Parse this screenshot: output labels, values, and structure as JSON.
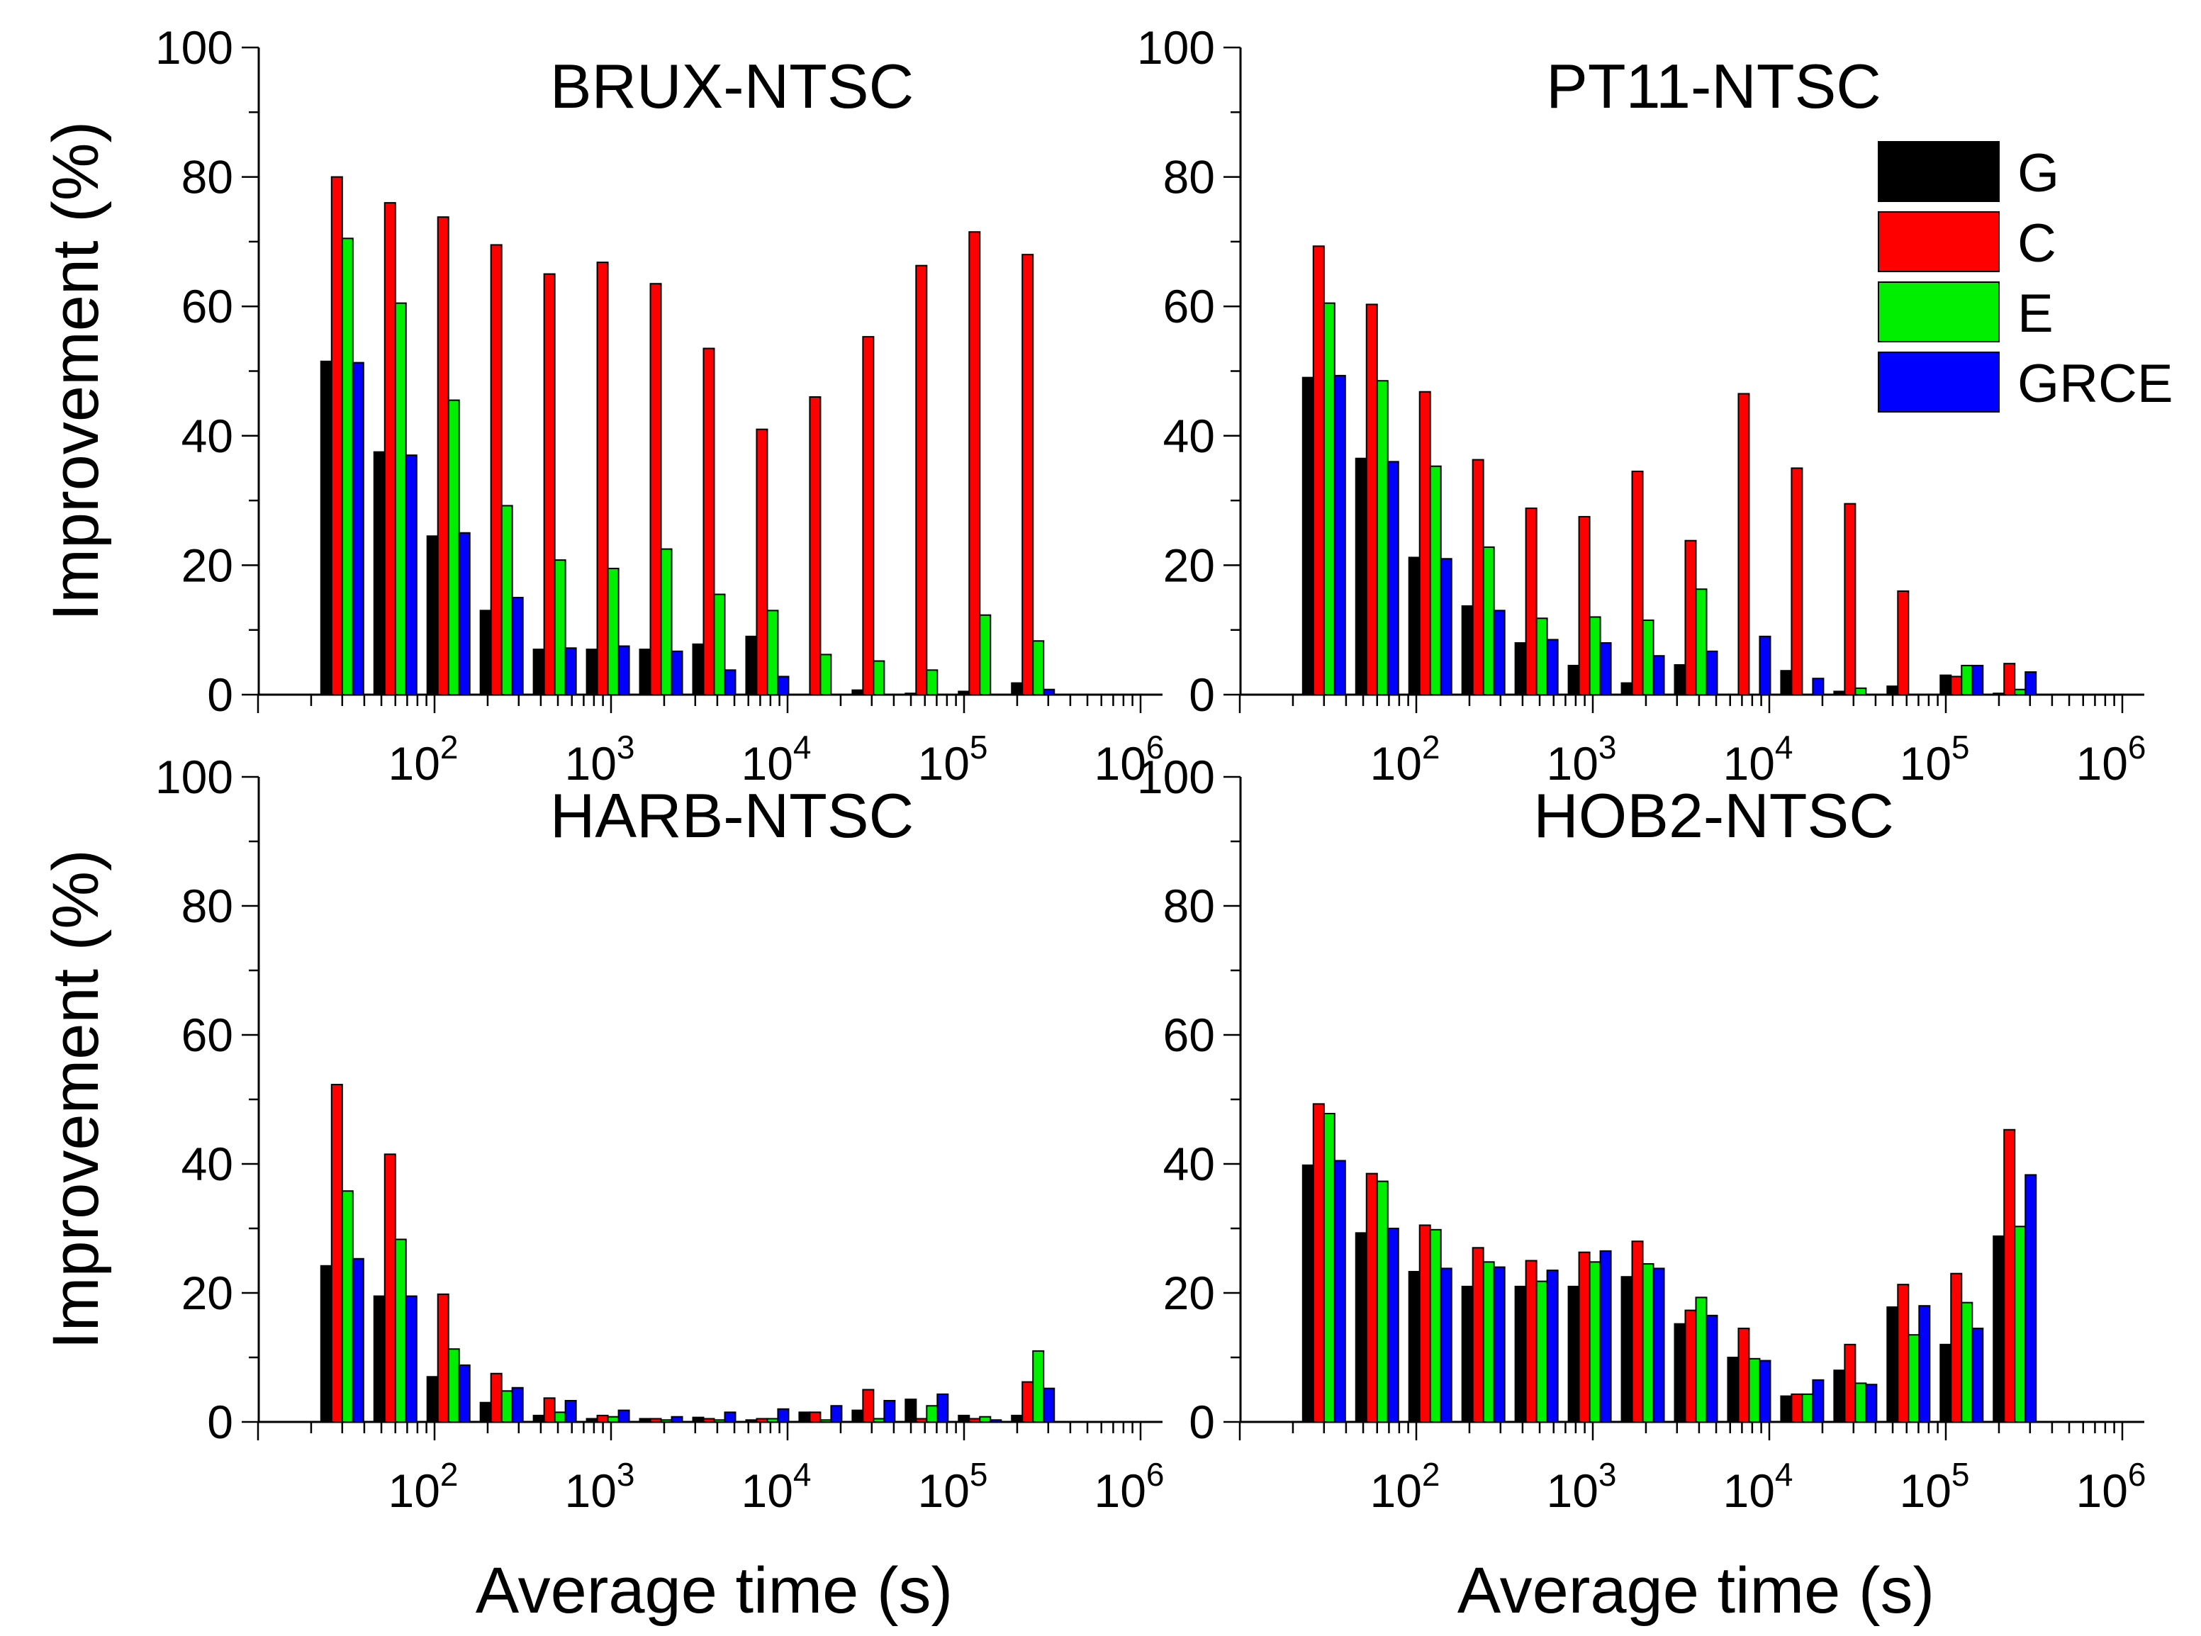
{
  "colors": {
    "G": "#000000",
    "C": "#ff0000",
    "E": "#00ee00",
    "GRCE": "#0000ff"
  },
  "axes": {
    "xlabel": "Average time (s)",
    "ylabel": "Improvement (%)",
    "y_ticks": [
      "0",
      "20",
      "40",
      "60",
      "80",
      "100"
    ],
    "x_tick_bases": [
      "10",
      "10",
      "10",
      "10",
      "10"
    ],
    "x_tick_exponents": [
      "2",
      "3",
      "4",
      "5",
      "6"
    ]
  },
  "legend": {
    "entries": [
      "G",
      "C",
      "E",
      "GRCE"
    ],
    "location": "top-right of PT11-NTSC panel"
  },
  "chart_data": [
    {
      "type": "bar",
      "title": "BRUX-NTSC",
      "xscale": "log",
      "xlim": [
        10,
        1000000
      ],
      "ylim": [
        0,
        100
      ],
      "x": [
        30,
        60,
        120,
        240,
        480,
        960,
        1920,
        3840,
        7680,
        15360,
        30720,
        61440,
        122880,
        245760
      ],
      "series": [
        {
          "name": "G",
          "values": [
            51.5,
            37.5,
            24.5,
            13,
            7,
            7,
            7,
            7.8,
            9,
            0,
            0.7,
            0.2,
            0.5,
            1.8
          ]
        },
        {
          "name": "C",
          "values": [
            80,
            76,
            73.8,
            69.5,
            65,
            66.8,
            63.5,
            53.5,
            41,
            46,
            55.3,
            66.3,
            71.5,
            68
          ]
        },
        {
          "name": "E",
          "values": [
            70.5,
            60.5,
            45.5,
            29.2,
            20.8,
            19.5,
            22.5,
            15.5,
            13,
            6.2,
            5.2,
            3.8,
            12.3,
            8.3
          ]
        },
        {
          "name": "GRCE",
          "values": [
            51.3,
            37,
            25,
            15,
            7.2,
            7.5,
            6.7,
            3.8,
            2.8,
            0,
            0,
            0,
            0,
            0.8
          ]
        }
      ]
    },
    {
      "type": "bar",
      "title": "PT11-NTSC",
      "xscale": "log",
      "xlim": [
        10,
        1000000
      ],
      "ylim": [
        0,
        100
      ],
      "x": [
        30,
        60,
        120,
        240,
        480,
        960,
        1920,
        3840,
        7680,
        15360,
        30720,
        61440,
        122880,
        245760
      ],
      "series": [
        {
          "name": "G",
          "values": [
            49,
            36.5,
            21.2,
            13.7,
            8,
            4.5,
            1.8,
            4.6,
            0,
            3.7,
            0.5,
            1.3,
            3,
            0.2
          ]
        },
        {
          "name": "C",
          "values": [
            69.3,
            60.3,
            46.8,
            36.3,
            28.8,
            27.5,
            34.5,
            23.8,
            46.5,
            35,
            29.5,
            16,
            2.8,
            4.8
          ]
        },
        {
          "name": "E",
          "values": [
            60.5,
            48.5,
            35.3,
            22.8,
            11.8,
            12,
            11.5,
            16.3,
            0,
            0,
            1,
            0,
            4.5,
            0.8
          ]
        },
        {
          "name": "GRCE",
          "values": [
            49.3,
            36,
            21,
            13,
            8.5,
            8,
            6,
            6.7,
            9,
            2.5,
            0,
            0,
            4.5,
            3.5
          ]
        }
      ]
    },
    {
      "type": "bar",
      "title": "HARB-NTSC",
      "xscale": "log",
      "xlim": [
        10,
        1000000
      ],
      "ylim": [
        0,
        100
      ],
      "x": [
        30,
        60,
        120,
        240,
        480,
        960,
        1920,
        3840,
        7680,
        15360,
        30720,
        61440,
        122880,
        245760
      ],
      "series": [
        {
          "name": "G",
          "values": [
            24.2,
            19.5,
            7,
            3,
            1,
            0.5,
            0.5,
            0.7,
            0.3,
            1.5,
            1.8,
            3.5,
            1,
            1
          ]
        },
        {
          "name": "C",
          "values": [
            52.3,
            41.5,
            19.8,
            7.5,
            3.7,
            1,
            0.5,
            0.5,
            0.5,
            1.5,
            5,
            0.5,
            0.5,
            6.2
          ]
        },
        {
          "name": "E",
          "values": [
            35.8,
            28.3,
            11.3,
            4.8,
            1.5,
            0.8,
            0.3,
            0.3,
            0.5,
            0.3,
            0.5,
            2.5,
            0.8,
            11
          ]
        },
        {
          "name": "GRCE",
          "values": [
            25.3,
            19.5,
            8.8,
            5.3,
            3.3,
            1.8,
            0.8,
            1.5,
            2,
            2.5,
            3.3,
            4.3,
            0.3,
            5.2
          ]
        }
      ]
    },
    {
      "type": "bar",
      "title": "HOB2-NTSC",
      "xscale": "log",
      "xlim": [
        10,
        1000000
      ],
      "ylim": [
        0,
        100
      ],
      "x": [
        30,
        60,
        120,
        240,
        480,
        960,
        1920,
        3840,
        7680,
        15360,
        30720,
        61440,
        122880,
        245760
      ],
      "series": [
        {
          "name": "G",
          "values": [
            39.8,
            29.3,
            23.3,
            21,
            21,
            21,
            22.5,
            15.2,
            10,
            4,
            8,
            17.8,
            12,
            28.8
          ]
        },
        {
          "name": "C",
          "values": [
            49.3,
            38.5,
            30.5,
            27,
            25,
            26.3,
            28,
            17.3,
            14.5,
            4.3,
            12,
            21.3,
            23,
            45.3
          ]
        },
        {
          "name": "E",
          "values": [
            47.8,
            37.3,
            29.8,
            24.8,
            21.8,
            24.8,
            24.5,
            19.3,
            9.8,
            4.3,
            6,
            13.5,
            18.5,
            30.3
          ]
        },
        {
          "name": "GRCE",
          "values": [
            40.5,
            30,
            23.8,
            24,
            23.5,
            26.5,
            23.8,
            16.5,
            9.5,
            6.5,
            5.8,
            18,
            14.5,
            38.3
          ]
        }
      ]
    }
  ]
}
